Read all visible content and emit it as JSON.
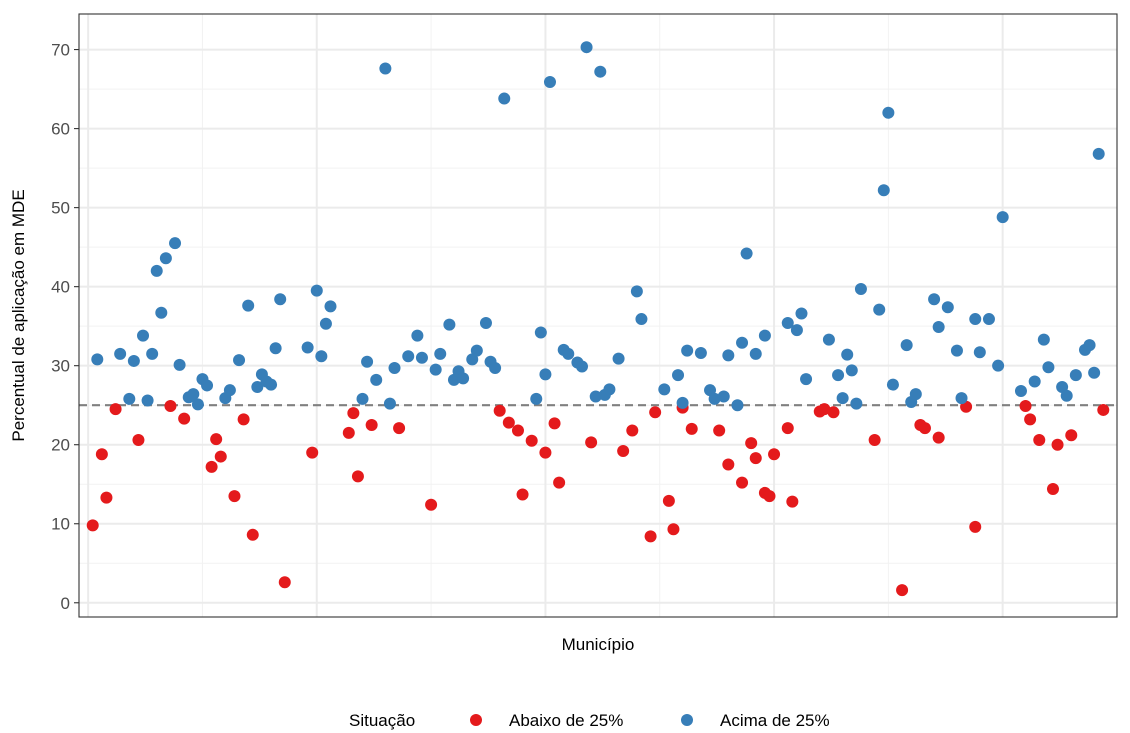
{
  "chart_data": {
    "type": "scatter",
    "xlabel": "Município",
    "ylabel": "Percentual de aplicação em MDE",
    "ylim": [
      -1.8,
      74.5
    ],
    "xlim": [
      -2,
      225
    ],
    "y_ticks": [
      0,
      10,
      20,
      30,
      40,
      50,
      60,
      70
    ],
    "reference_line": {
      "y": 25,
      "style": "dashed",
      "color": "#808080"
    },
    "grid": true,
    "legend": {
      "position": "bottom",
      "title": "Situação",
      "entries": [
        {
          "label": "Abaixo de 25%",
          "color": "#e41a1c"
        },
        {
          "label": "Acima de 25%",
          "color": "#377eb8"
        }
      ]
    },
    "series": [
      {
        "name": "Abaixo de 25%",
        "color": "#e41a1c",
        "points": [
          [
            1,
            9.8
          ],
          [
            3,
            18.8
          ],
          [
            4,
            13.3
          ],
          [
            6,
            24.5
          ],
          [
            11,
            20.6
          ],
          [
            18,
            24.9
          ],
          [
            21,
            23.3
          ],
          [
            27,
            17.2
          ],
          [
            28,
            20.7
          ],
          [
            29,
            18.5
          ],
          [
            32,
            13.5
          ],
          [
            34,
            23.2
          ],
          [
            36,
            8.6
          ],
          [
            43,
            2.6
          ],
          [
            49,
            19
          ],
          [
            57,
            21.5
          ],
          [
            58,
            24
          ],
          [
            59,
            16
          ],
          [
            62,
            22.5
          ],
          [
            68,
            22.1
          ],
          [
            75,
            12.4
          ],
          [
            90,
            24.3
          ],
          [
            92,
            22.8
          ],
          [
            94,
            21.8
          ],
          [
            95,
            13.7
          ],
          [
            97,
            20.5
          ],
          [
            100,
            19
          ],
          [
            102,
            22.7
          ],
          [
            103,
            15.2
          ],
          [
            110,
            20.3
          ],
          [
            117,
            19.2
          ],
          [
            119,
            21.8
          ],
          [
            123,
            8.4
          ],
          [
            124,
            24.1
          ],
          [
            127,
            12.9
          ],
          [
            128,
            9.3
          ],
          [
            130,
            24.7
          ],
          [
            132,
            22
          ],
          [
            138,
            21.8
          ],
          [
            140,
            17.5
          ],
          [
            143,
            15.2
          ],
          [
            145,
            20.2
          ],
          [
            146,
            18.3
          ],
          [
            148,
            13.9
          ],
          [
            149,
            13.5
          ],
          [
            150,
            18.8
          ],
          [
            153,
            22.1
          ],
          [
            154,
            12.8
          ],
          [
            160,
            24.2
          ],
          [
            161,
            24.5
          ],
          [
            163,
            24.1
          ],
          [
            172,
            20.6
          ],
          [
            178,
            1.6
          ],
          [
            182,
            22.5
          ],
          [
            183,
            22.1
          ],
          [
            186,
            20.9
          ],
          [
            192,
            24.8
          ],
          [
            194,
            9.6
          ],
          [
            205,
            24.9
          ],
          [
            206,
            23.2
          ],
          [
            208,
            20.6
          ],
          [
            211,
            14.4
          ],
          [
            212,
            20
          ],
          [
            215,
            21.2
          ],
          [
            222,
            24.4
          ]
        ]
      },
      {
        "name": "Acima de 25%",
        "color": "#377eb8",
        "points": [
          [
            2,
            30.8
          ],
          [
            7,
            31.5
          ],
          [
            9,
            25.8
          ],
          [
            10,
            30.6
          ],
          [
            12,
            33.8
          ],
          [
            13,
            25.6
          ],
          [
            14,
            31.5
          ],
          [
            15,
            42
          ],
          [
            16,
            36.7
          ],
          [
            17,
            43.6
          ],
          [
            19,
            45.5
          ],
          [
            20,
            30.1
          ],
          [
            22,
            26
          ],
          [
            23,
            26.4
          ],
          [
            24,
            25.1
          ],
          [
            25,
            28.3
          ],
          [
            26,
            27.5
          ],
          [
            30,
            25.9
          ],
          [
            31,
            26.9
          ],
          [
            33,
            30.7
          ],
          [
            35,
            37.6
          ],
          [
            37,
            27.3
          ],
          [
            38,
            28.9
          ],
          [
            39,
            28
          ],
          [
            40,
            27.6
          ],
          [
            41,
            32.2
          ],
          [
            42,
            38.4
          ],
          [
            48,
            32.3
          ],
          [
            50,
            39.5
          ],
          [
            51,
            31.2
          ],
          [
            52,
            35.3
          ],
          [
            53,
            37.5
          ],
          [
            60,
            25.8
          ],
          [
            61,
            30.5
          ],
          [
            63,
            28.2
          ],
          [
            65,
            67.6
          ],
          [
            66,
            25.2
          ],
          [
            67,
            29.7
          ],
          [
            70,
            31.2
          ],
          [
            72,
            33.8
          ],
          [
            73,
            31
          ],
          [
            76,
            29.5
          ],
          [
            77,
            31.5
          ],
          [
            79,
            35.2
          ],
          [
            80,
            28.2
          ],
          [
            81,
            29.3
          ],
          [
            82,
            28.4
          ],
          [
            84,
            30.8
          ],
          [
            85,
            31.9
          ],
          [
            87,
            35.4
          ],
          [
            88,
            30.5
          ],
          [
            89,
            29.7
          ],
          [
            91,
            63.8
          ],
          [
            98,
            25.8
          ],
          [
            99,
            34.2
          ],
          [
            100,
            28.9
          ],
          [
            101,
            65.9
          ],
          [
            104,
            32
          ],
          [
            105,
            31.5
          ],
          [
            107,
            30.4
          ],
          [
            108,
            29.9
          ],
          [
            109,
            70.3
          ],
          [
            111,
            26.1
          ],
          [
            112,
            67.2
          ],
          [
            113,
            26.3
          ],
          [
            114,
            27
          ],
          [
            116,
            30.9
          ],
          [
            120,
            39.4
          ],
          [
            121,
            35.9
          ],
          [
            126,
            27
          ],
          [
            129,
            28.8
          ],
          [
            130,
            25.3
          ],
          [
            131,
            31.9
          ],
          [
            134,
            31.6
          ],
          [
            136,
            26.9
          ],
          [
            137,
            25.8
          ],
          [
            139,
            26.1
          ],
          [
            140,
            31.3
          ],
          [
            142,
            25
          ],
          [
            143,
            32.9
          ],
          [
            144,
            44.2
          ],
          [
            146,
            31.5
          ],
          [
            148,
            33.8
          ],
          [
            153,
            35.4
          ],
          [
            155,
            34.5
          ],
          [
            156,
            36.6
          ],
          [
            157,
            28.3
          ],
          [
            162,
            33.3
          ],
          [
            164,
            28.8
          ],
          [
            165,
            25.9
          ],
          [
            166,
            31.4
          ],
          [
            167,
            29.4
          ],
          [
            168,
            25.2
          ],
          [
            169,
            39.7
          ],
          [
            173,
            37.1
          ],
          [
            174,
            52.2
          ],
          [
            175,
            62
          ],
          [
            176,
            27.6
          ],
          [
            179,
            32.6
          ],
          [
            180,
            25.4
          ],
          [
            181,
            26.4
          ],
          [
            185,
            38.4
          ],
          [
            186,
            34.9
          ],
          [
            188,
            37.4
          ],
          [
            190,
            31.9
          ],
          [
            191,
            25.9
          ],
          [
            194,
            35.9
          ],
          [
            195,
            31.7
          ],
          [
            197,
            35.9
          ],
          [
            199,
            30
          ],
          [
            200,
            48.8
          ],
          [
            204,
            26.8
          ],
          [
            207,
            28
          ],
          [
            209,
            33.3
          ],
          [
            210,
            29.8
          ],
          [
            213,
            27.3
          ],
          [
            214,
            26.2
          ],
          [
            216,
            28.8
          ],
          [
            218,
            32
          ],
          [
            219,
            32.6
          ],
          [
            220,
            29.1
          ],
          [
            221,
            56.8
          ]
        ]
      }
    ]
  }
}
